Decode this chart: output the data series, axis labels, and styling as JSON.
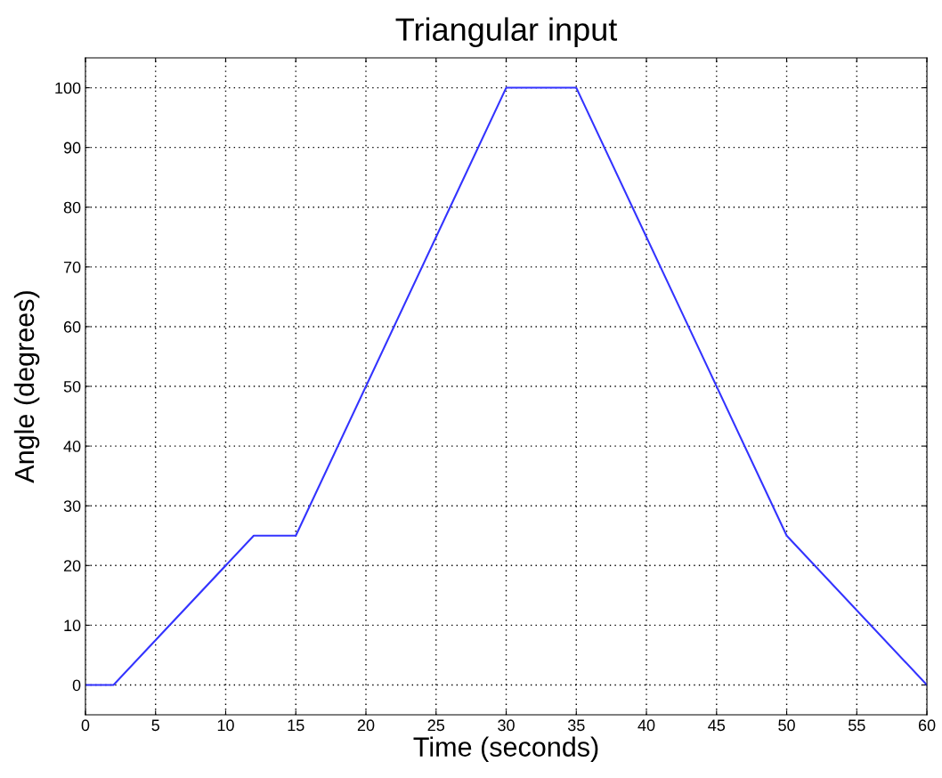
{
  "chart_data": {
    "type": "line",
    "title": "Triangular input",
    "xlabel": "Time (seconds)",
    "ylabel": "Angle (degrees)",
    "x": [
      0,
      2,
      12,
      15,
      30,
      35,
      50,
      60
    ],
    "series": [
      {
        "color": "#3333ff",
        "values": [
          0,
          0,
          25,
          25,
          100,
          100,
          25,
          0
        ]
      }
    ],
    "xlim": [
      0,
      60
    ],
    "xticks": [
      0,
      5,
      10,
      15,
      20,
      25,
      30,
      35,
      40,
      45,
      50,
      55,
      60
    ],
    "ylim": [
      -5,
      105
    ],
    "yticks": [
      0,
      10,
      20,
      30,
      40,
      50,
      60,
      70,
      80,
      90,
      100
    ],
    "grid": true,
    "line_style": "solid",
    "marker": "none"
  }
}
